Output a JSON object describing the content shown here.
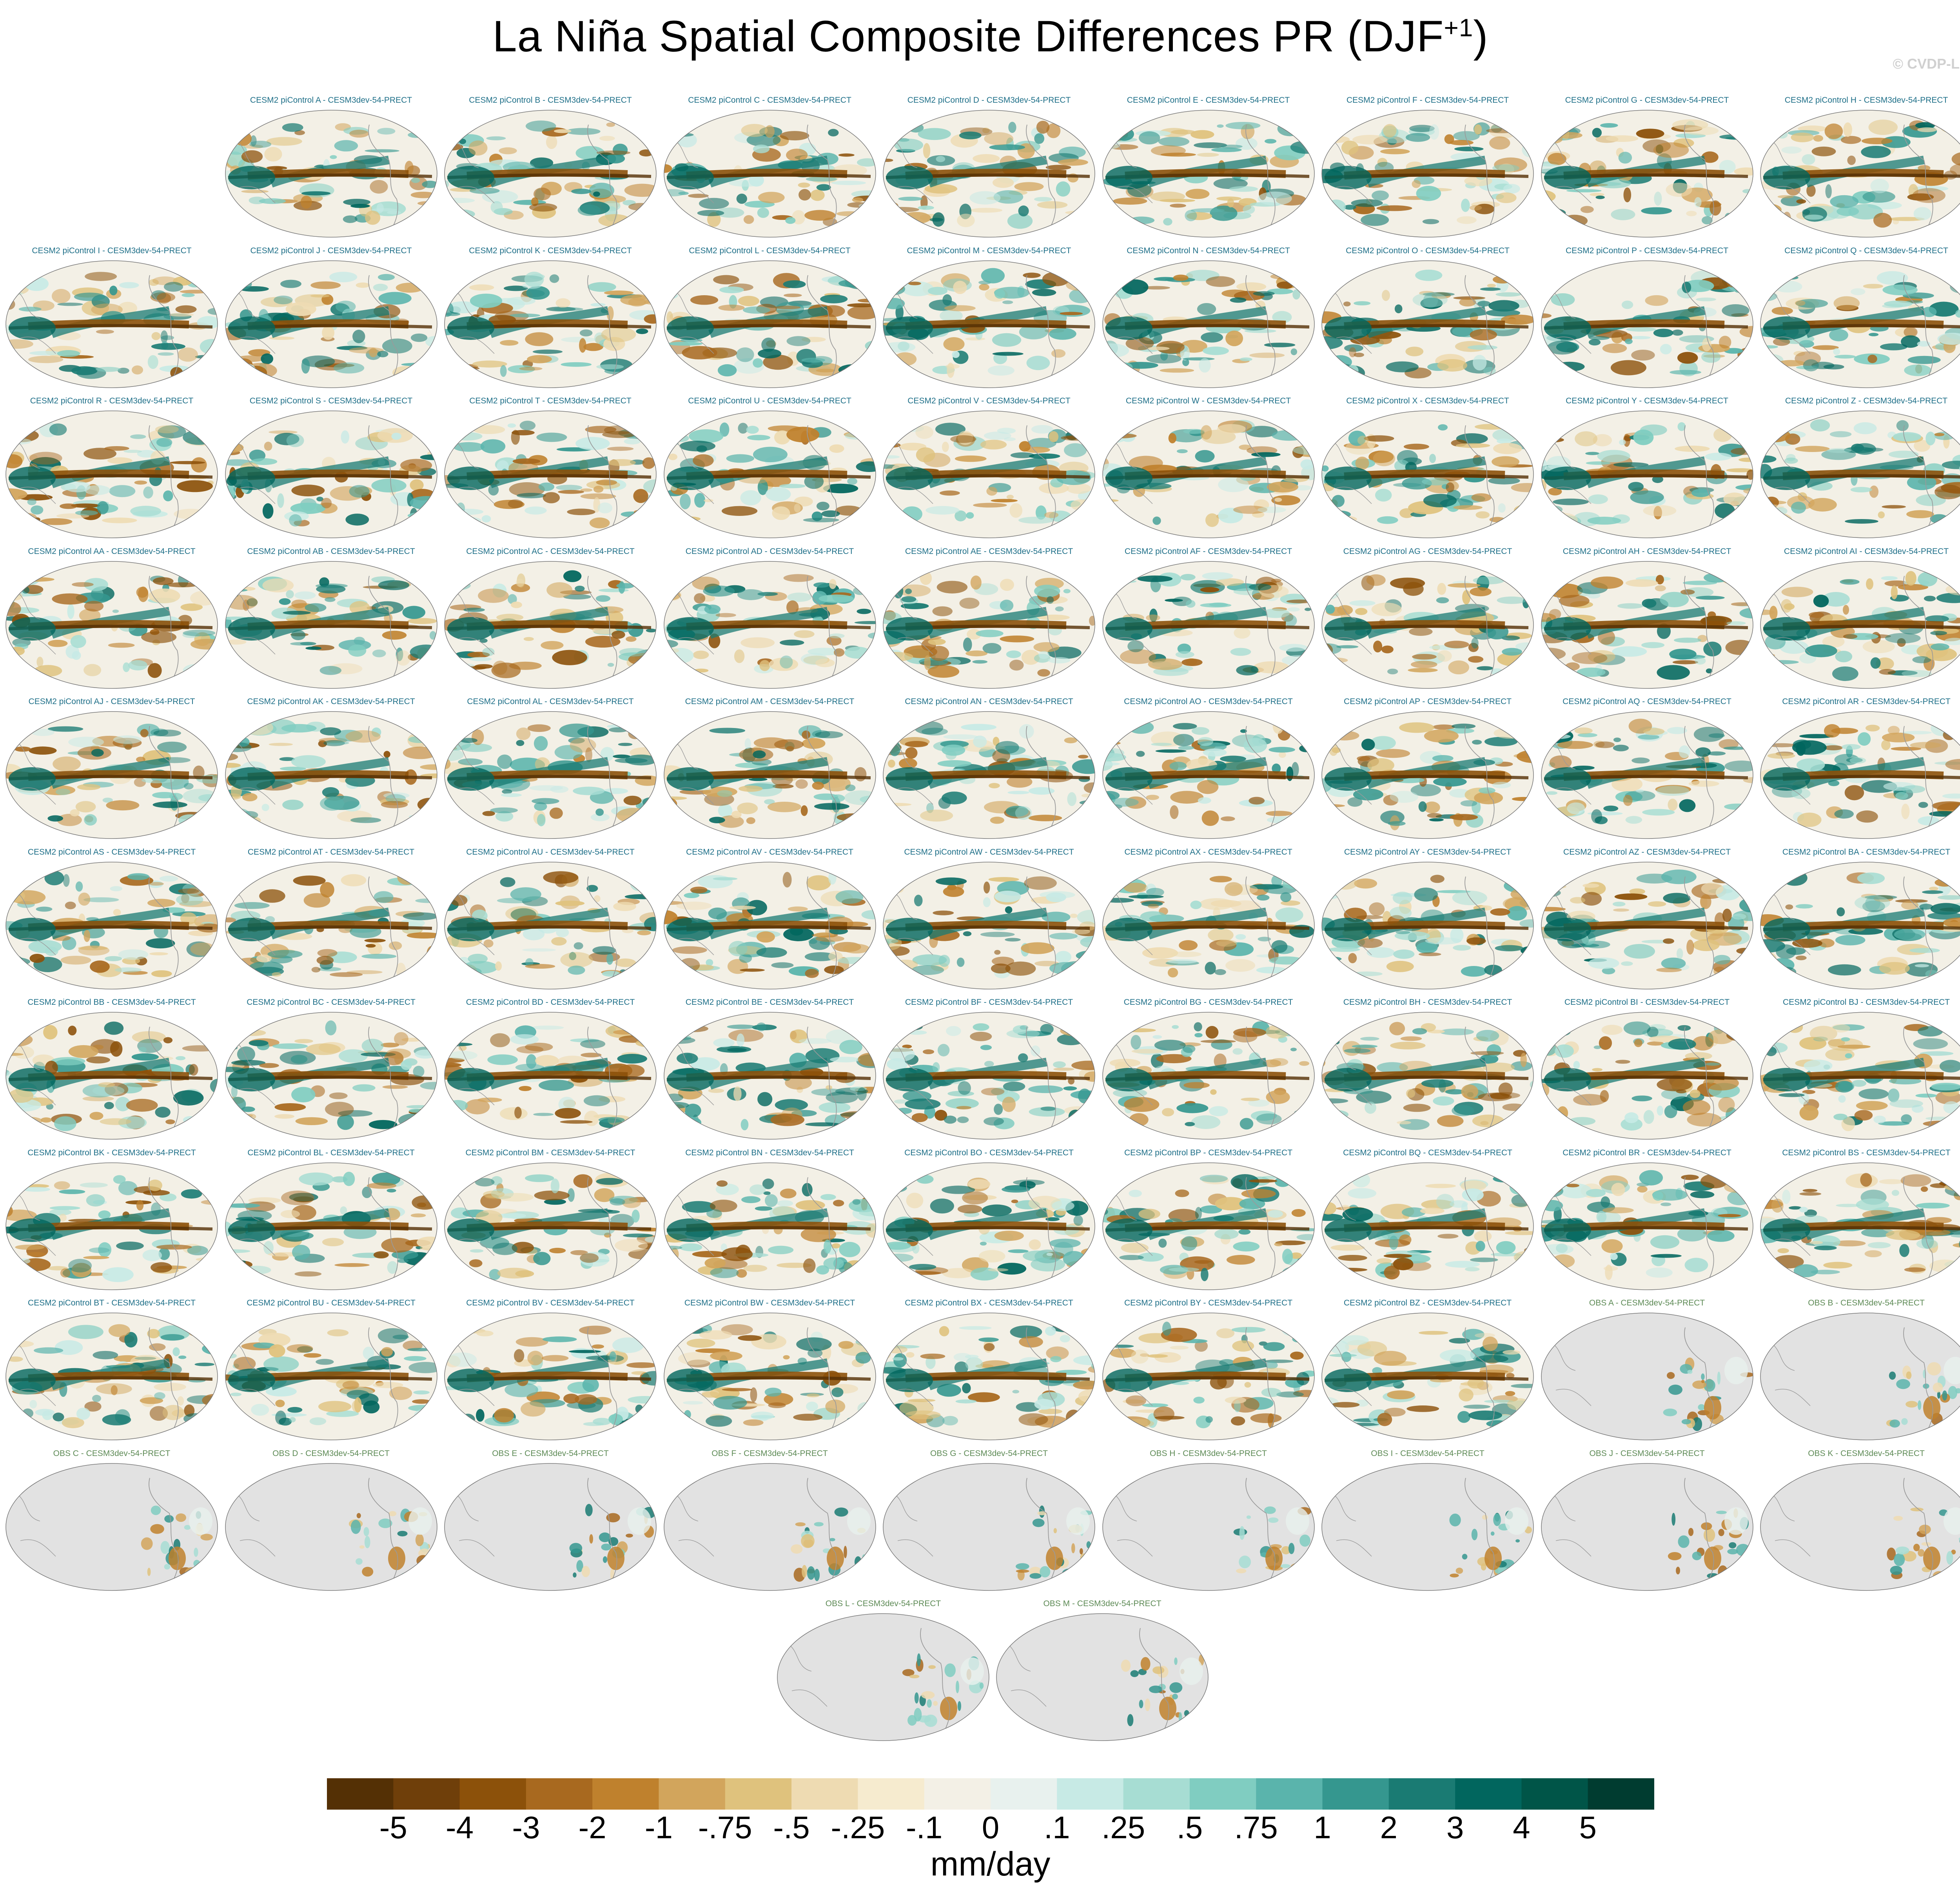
{
  "figure": {
    "title": "La Niña Spatial Composite Differences PR (DJF",
    "title_sup": "+1",
    "title_close": ")",
    "credit": "© CVDP-LE"
  },
  "panels": [
    {
      "label": "CESM2 piControl A - CESM3dev-54-PRECT",
      "kind": "model"
    },
    {
      "label": "CESM2 piControl B - CESM3dev-54-PRECT",
      "kind": "model"
    },
    {
      "label": "CESM2 piControl C - CESM3dev-54-PRECT",
      "kind": "model"
    },
    {
      "label": "CESM2 piControl D - CESM3dev-54-PRECT",
      "kind": "model"
    },
    {
      "label": "CESM2 piControl E - CESM3dev-54-PRECT",
      "kind": "model"
    },
    {
      "label": "CESM2 piControl F - CESM3dev-54-PRECT",
      "kind": "model"
    },
    {
      "label": "CESM2 piControl G - CESM3dev-54-PRECT",
      "kind": "model"
    },
    {
      "label": "CESM2 piControl H - CESM3dev-54-PRECT",
      "kind": "model"
    },
    {
      "label": "CESM2 piControl I - CESM3dev-54-PRECT",
      "kind": "model"
    },
    {
      "label": "CESM2 piControl J - CESM3dev-54-PRECT",
      "kind": "model"
    },
    {
      "label": "CESM2 piControl K - CESM3dev-54-PRECT",
      "kind": "model"
    },
    {
      "label": "CESM2 piControl L - CESM3dev-54-PRECT",
      "kind": "model"
    },
    {
      "label": "CESM2 piControl M - CESM3dev-54-PRECT",
      "kind": "model"
    },
    {
      "label": "CESM2 piControl N - CESM3dev-54-PRECT",
      "kind": "model"
    },
    {
      "label": "CESM2 piControl O - CESM3dev-54-PRECT",
      "kind": "model"
    },
    {
      "label": "CESM2 piControl P - CESM3dev-54-PRECT",
      "kind": "model"
    },
    {
      "label": "CESM2 piControl Q - CESM3dev-54-PRECT",
      "kind": "model"
    },
    {
      "label": "CESM2 piControl R - CESM3dev-54-PRECT",
      "kind": "model"
    },
    {
      "label": "CESM2 piControl S - CESM3dev-54-PRECT",
      "kind": "model"
    },
    {
      "label": "CESM2 piControl T - CESM3dev-54-PRECT",
      "kind": "model"
    },
    {
      "label": "CESM2 piControl U - CESM3dev-54-PRECT",
      "kind": "model"
    },
    {
      "label": "CESM2 piControl V - CESM3dev-54-PRECT",
      "kind": "model"
    },
    {
      "label": "CESM2 piControl W - CESM3dev-54-PRECT",
      "kind": "model"
    },
    {
      "label": "CESM2 piControl X - CESM3dev-54-PRECT",
      "kind": "model"
    },
    {
      "label": "CESM2 piControl Y - CESM3dev-54-PRECT",
      "kind": "model"
    },
    {
      "label": "CESM2 piControl Z - CESM3dev-54-PRECT",
      "kind": "model"
    },
    {
      "label": "CESM2 piControl AA - CESM3dev-54-PRECT",
      "kind": "model"
    },
    {
      "label": "CESM2 piControl AB - CESM3dev-54-PRECT",
      "kind": "model"
    },
    {
      "label": "CESM2 piControl AC - CESM3dev-54-PRECT",
      "kind": "model"
    },
    {
      "label": "CESM2 piControl AD - CESM3dev-54-PRECT",
      "kind": "model"
    },
    {
      "label": "CESM2 piControl AE - CESM3dev-54-PRECT",
      "kind": "model"
    },
    {
      "label": "CESM2 piControl AF - CESM3dev-54-PRECT",
      "kind": "model"
    },
    {
      "label": "CESM2 piControl AG - CESM3dev-54-PRECT",
      "kind": "model"
    },
    {
      "label": "CESM2 piControl AH - CESM3dev-54-PRECT",
      "kind": "model"
    },
    {
      "label": "CESM2 piControl AI - CESM3dev-54-PRECT",
      "kind": "model"
    },
    {
      "label": "CESM2 piControl AJ - CESM3dev-54-PRECT",
      "kind": "model"
    },
    {
      "label": "CESM2 piControl AK - CESM3dev-54-PRECT",
      "kind": "model"
    },
    {
      "label": "CESM2 piControl AL - CESM3dev-54-PRECT",
      "kind": "model"
    },
    {
      "label": "CESM2 piControl AM - CESM3dev-54-PRECT",
      "kind": "model"
    },
    {
      "label": "CESM2 piControl AN - CESM3dev-54-PRECT",
      "kind": "model"
    },
    {
      "label": "CESM2 piControl AO - CESM3dev-54-PRECT",
      "kind": "model"
    },
    {
      "label": "CESM2 piControl AP - CESM3dev-54-PRECT",
      "kind": "model"
    },
    {
      "label": "CESM2 piControl AQ - CESM3dev-54-PRECT",
      "kind": "model"
    },
    {
      "label": "CESM2 piControl AR - CESM3dev-54-PRECT",
      "kind": "model"
    },
    {
      "label": "CESM2 piControl AS - CESM3dev-54-PRECT",
      "kind": "model"
    },
    {
      "label": "CESM2 piControl AT - CESM3dev-54-PRECT",
      "kind": "model"
    },
    {
      "label": "CESM2 piControl AU - CESM3dev-54-PRECT",
      "kind": "model"
    },
    {
      "label": "CESM2 piControl AV - CESM3dev-54-PRECT",
      "kind": "model"
    },
    {
      "label": "CESM2 piControl AW - CESM3dev-54-PRECT",
      "kind": "model"
    },
    {
      "label": "CESM2 piControl AX - CESM3dev-54-PRECT",
      "kind": "model"
    },
    {
      "label": "CESM2 piControl AY - CESM3dev-54-PRECT",
      "kind": "model"
    },
    {
      "label": "CESM2 piControl AZ - CESM3dev-54-PRECT",
      "kind": "model"
    },
    {
      "label": "CESM2 piControl BA - CESM3dev-54-PRECT",
      "kind": "model"
    },
    {
      "label": "CESM2 piControl BB - CESM3dev-54-PRECT",
      "kind": "model"
    },
    {
      "label": "CESM2 piControl BC - CESM3dev-54-PRECT",
      "kind": "model"
    },
    {
      "label": "CESM2 piControl BD - CESM3dev-54-PRECT",
      "kind": "model"
    },
    {
      "label": "CESM2 piControl BE - CESM3dev-54-PRECT",
      "kind": "model"
    },
    {
      "label": "CESM2 piControl BF - CESM3dev-54-PRECT",
      "kind": "model"
    },
    {
      "label": "CESM2 piControl BG - CESM3dev-54-PRECT",
      "kind": "model"
    },
    {
      "label": "CESM2 piControl BH - CESM3dev-54-PRECT",
      "kind": "model"
    },
    {
      "label": "CESM2 piControl BI - CESM3dev-54-PRECT",
      "kind": "model"
    },
    {
      "label": "CESM2 piControl BJ - CESM3dev-54-PRECT",
      "kind": "model"
    },
    {
      "label": "CESM2 piControl BK - CESM3dev-54-PRECT",
      "kind": "model"
    },
    {
      "label": "CESM2 piControl BL - CESM3dev-54-PRECT",
      "kind": "model"
    },
    {
      "label": "CESM2 piControl BM - CESM3dev-54-PRECT",
      "kind": "model"
    },
    {
      "label": "CESM2 piControl BN - CESM3dev-54-PRECT",
      "kind": "model"
    },
    {
      "label": "CESM2 piControl BO - CESM3dev-54-PRECT",
      "kind": "model"
    },
    {
      "label": "CESM2 piControl BP - CESM3dev-54-PRECT",
      "kind": "model"
    },
    {
      "label": "CESM2 piControl BQ - CESM3dev-54-PRECT",
      "kind": "model"
    },
    {
      "label": "CESM2 piControl BR - CESM3dev-54-PRECT",
      "kind": "model"
    },
    {
      "label": "CESM2 piControl BS - CESM3dev-54-PRECT",
      "kind": "model"
    },
    {
      "label": "CESM2 piControl BT - CESM3dev-54-PRECT",
      "kind": "model"
    },
    {
      "label": "CESM2 piControl BU - CESM3dev-54-PRECT",
      "kind": "model"
    },
    {
      "label": "CESM2 piControl BV - CESM3dev-54-PRECT",
      "kind": "model"
    },
    {
      "label": "CESM2 piControl BW - CESM3dev-54-PRECT",
      "kind": "model"
    },
    {
      "label": "CESM2 piControl BX - CESM3dev-54-PRECT",
      "kind": "model"
    },
    {
      "label": "CESM2 piControl BY - CESM3dev-54-PRECT",
      "kind": "model"
    },
    {
      "label": "CESM2 piControl BZ - CESM3dev-54-PRECT",
      "kind": "model"
    },
    {
      "label": "OBS A - CESM3dev-54-PRECT",
      "kind": "obs"
    },
    {
      "label": "OBS B - CESM3dev-54-PRECT",
      "kind": "obs"
    },
    {
      "label": "OBS C - CESM3dev-54-PRECT",
      "kind": "obs"
    },
    {
      "label": "OBS D - CESM3dev-54-PRECT",
      "kind": "obs"
    },
    {
      "label": "OBS E - CESM3dev-54-PRECT",
      "kind": "obs"
    },
    {
      "label": "OBS F - CESM3dev-54-PRECT",
      "kind": "obs"
    },
    {
      "label": "OBS G - CESM3dev-54-PRECT",
      "kind": "obs"
    },
    {
      "label": "OBS H - CESM3dev-54-PRECT",
      "kind": "obs"
    },
    {
      "label": "OBS I - CESM3dev-54-PRECT",
      "kind": "obs"
    },
    {
      "label": "OBS J - CESM3dev-54-PRECT",
      "kind": "obs"
    },
    {
      "label": "OBS K - CESM3dev-54-PRECT",
      "kind": "obs"
    },
    {
      "label": "OBS L - CESM3dev-54-PRECT",
      "kind": "obs"
    },
    {
      "label": "OBS M - CESM3dev-54-PRECT",
      "kind": "obs"
    }
  ],
  "colorbar": {
    "units": "mm/day",
    "tick_labels": [
      "-5",
      "-4",
      "-3",
      "-2",
      "-1",
      "-.75",
      "-.5",
      "-.25",
      "-.1",
      "0",
      ".1",
      ".25",
      ".5",
      ".75",
      "1",
      "2",
      "3",
      "4",
      "5"
    ],
    "colors": [
      "#543005",
      "#6f3f0a",
      "#8c510a",
      "#a8691f",
      "#bf812d",
      "#d2a55c",
      "#dfc27d",
      "#eedbb2",
      "#f6ebcf",
      "#f3f0e6",
      "#e8f1ee",
      "#c7eae5",
      "#a7ddd3",
      "#80cdc1",
      "#5ab4ac",
      "#35978f",
      "#1a7b73",
      "#01665e",
      "#005548",
      "#003c30"
    ]
  },
  "map_colors": {
    "model_ocean": "#f3f0e6",
    "obs_land_mask": "#e2e2e2",
    "dry": "#a8691f",
    "wet": "#1a7b73",
    "coast": "#9a9a9a"
  }
}
